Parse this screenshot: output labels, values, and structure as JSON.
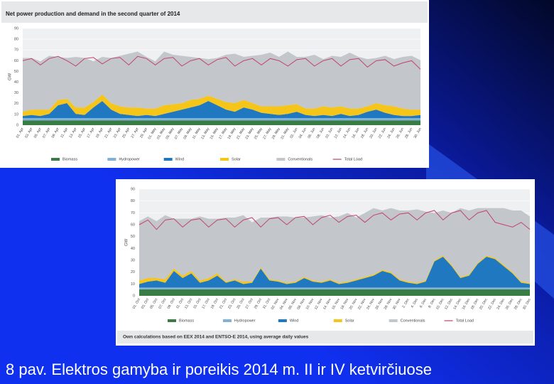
{
  "caption": "8 pav. Elektros gamyba ir poreikis 2014 m. II ir IV ketvirčiuose",
  "chart_data": [
    {
      "type": "area",
      "stacked": true,
      "title": "Net power production and demand in the second quarter of 2014",
      "ylabel": "GW",
      "ylim": [
        0,
        90
      ],
      "yticks": [
        0,
        10,
        20,
        30,
        40,
        50,
        60,
        70,
        80,
        90
      ],
      "grid": true,
      "categories": [
        "01. Apr",
        "03. Apr",
        "05. Apr",
        "07. Apr",
        "09. Apr",
        "11. Apr",
        "13. Apr",
        "15. Apr",
        "17. Apr",
        "19. Apr",
        "21. Apr",
        "23. Apr",
        "25. Apr",
        "27. Apr",
        "29. Apr",
        "01. May",
        "03. May",
        "05. May",
        "07. May",
        "09. May",
        "11. May",
        "13. May",
        "15. May",
        "17. May",
        "19. May",
        "21. May",
        "23. May",
        "25. May",
        "27. May",
        "29. May",
        "31. May",
        "02. Jun",
        "04. Jun",
        "06. Jun",
        "08. Jun",
        "10. Jun",
        "12. Jun",
        "14. Jun",
        "16. Jun",
        "18. Jun",
        "20. Jun",
        "22. Jun",
        "24. Jun",
        "26. Jun",
        "28. Jun",
        "30. Jun"
      ],
      "series": [
        {
          "name": "Biomass",
          "color": "#3a7d44",
          "values": [
            4.5,
            4.5,
            4.5,
            4.5,
            4.5,
            4.5,
            4.5,
            4.5,
            4.5,
            4.5,
            4.5,
            4.5,
            4.5,
            4.5,
            4.5,
            4.5,
            4.5,
            4.5,
            4.5,
            4.5,
            4.5,
            4.5,
            4.5,
            4.5,
            4.5,
            4.5,
            4.5,
            4.5,
            4.5,
            4.5,
            4.5,
            4.5,
            4.5,
            4.5,
            4.5,
            4.5,
            4.5,
            4.5,
            4.5,
            4.5,
            4.5,
            4.5,
            4.5,
            4.5,
            4.5,
            4.5
          ]
        },
        {
          "name": "Hydropower",
          "color": "#7fb2d8",
          "values": [
            2,
            2,
            2,
            2,
            2,
            2,
            2,
            2,
            2,
            2,
            2,
            2,
            2,
            2,
            2,
            2,
            2,
            2,
            2,
            2,
            2,
            2,
            2,
            2,
            2,
            2,
            2,
            2,
            2,
            2,
            2,
            2,
            2,
            2,
            2,
            2,
            2,
            2,
            2,
            2,
            2,
            2,
            2,
            2,
            2,
            2
          ]
        },
        {
          "name": "Wind",
          "color": "#1f78c0",
          "values": [
            2,
            3,
            2,
            4,
            12,
            14,
            4,
            3,
            10,
            16,
            8,
            4,
            3,
            2,
            3,
            2,
            4,
            6,
            8,
            10,
            12,
            16,
            12,
            8,
            6,
            10,
            8,
            5,
            4,
            3,
            4,
            6,
            3,
            2,
            3,
            2,
            4,
            2,
            3,
            6,
            8,
            5,
            3,
            2,
            2,
            3
          ]
        },
        {
          "name": "Solar",
          "color": "#f5c51a",
          "values": [
            4,
            5,
            6,
            4,
            5,
            4,
            6,
            7,
            5,
            6,
            6,
            7,
            7,
            8,
            6,
            7,
            8,
            7,
            6,
            7,
            6,
            5,
            6,
            7,
            8,
            7,
            6,
            6,
            7,
            8,
            8,
            7,
            6,
            7,
            8,
            8,
            7,
            7,
            6,
            5,
            6,
            7,
            8,
            7,
            6,
            5
          ]
        },
        {
          "name": "Conventionals",
          "color": "#c3c7cb",
          "values": [
            50,
            48,
            45,
            50,
            40,
            38,
            47,
            46,
            38,
            35,
            42,
            47,
            50,
            52,
            48,
            44,
            50,
            46,
            44,
            40,
            38,
            34,
            38,
            44,
            46,
            40,
            44,
            48,
            50,
            46,
            50,
            44,
            48,
            50,
            44,
            48,
            46,
            52,
            48,
            44,
            42,
            46,
            44,
            48,
            50,
            46
          ]
        },
        {
          "name": "Total Load",
          "color": "#c2436c",
          "type": "line",
          "values": [
            60,
            62,
            56,
            62,
            64,
            60,
            55,
            62,
            63,
            57,
            62,
            63,
            56,
            64,
            62,
            56,
            62,
            63,
            55,
            60,
            62,
            56,
            61,
            63,
            55,
            60,
            62,
            56,
            62,
            60,
            55,
            61,
            62,
            55,
            60,
            62,
            55,
            61,
            62,
            54,
            60,
            61,
            55,
            58,
            60,
            52
          ]
        }
      ]
    },
    {
      "type": "area",
      "stacked": true,
      "ylabel": "GW",
      "note": "Own calculations based on EEX 2014 and ENTSO-E 2014, using average daily values",
      "ylim": [
        0,
        90
      ],
      "yticks": [
        0,
        10,
        20,
        30,
        40,
        50,
        60,
        70,
        80,
        90
      ],
      "grid": true,
      "categories": [
        "01. Oct",
        "03. Oct",
        "05. Oct",
        "07. Oct",
        "09. Oct",
        "11. Oct",
        "13. Oct",
        "15. Oct",
        "17. Oct",
        "19. Oct",
        "21. Oct",
        "23. Oct",
        "25. Oct",
        "27. Oct",
        "29. Oct",
        "31. Oct",
        "02. Nov",
        "04. Nov",
        "06. Nov",
        "08. Nov",
        "10. Nov",
        "12. Nov",
        "14. Nov",
        "16. Nov",
        "18. Nov",
        "20. Nov",
        "22. Nov",
        "24. Nov",
        "26. Nov",
        "28. Nov",
        "30. Nov",
        "2. Dec",
        "4. Dec",
        "6. Dec",
        "8. Dec",
        "10. Dec",
        "12. Dec",
        "14. Dec",
        "16. Dec",
        "18. Dec",
        "20. Dec",
        "22. Dec",
        "24. Dec",
        "26. Dec",
        "28. Dec",
        "30. Dec"
      ],
      "series": [
        {
          "name": "Biomass",
          "color": "#3a7d44",
          "values": [
            5.5,
            5.5,
            5.5,
            5.5,
            5.5,
            5.5,
            5.5,
            5.5,
            5.5,
            5.5,
            5.5,
            5.5,
            5.5,
            5.5,
            5.5,
            5.5,
            5.5,
            5.5,
            5.5,
            5.5,
            5.5,
            5.5,
            5.5,
            5.5,
            5.5,
            5.5,
            5.5,
            5.5,
            5.5,
            5.5,
            5.5,
            5.5,
            5.5,
            5.5,
            5.5,
            5.5,
            5.5,
            5.5,
            5.5,
            5.5,
            5.5,
            5.5,
            5.5,
            5.5,
            5.5,
            5.5
          ]
        },
        {
          "name": "Hydropower",
          "color": "#7fb2d8",
          "values": [
            1.5,
            1.5,
            1.5,
            1.5,
            1.5,
            1.5,
            1.5,
            1.5,
            1.5,
            1.5,
            1.5,
            1.5,
            1.5,
            1.5,
            1.5,
            1.5,
            1.5,
            1.5,
            1.5,
            1.5,
            1.5,
            1.5,
            1.5,
            1.5,
            1.5,
            1.5,
            1.5,
            1.5,
            1.5,
            1.5,
            1.5,
            1.5,
            1.5,
            1.5,
            1.5,
            1.5,
            1.5,
            1.5,
            1.5,
            1.5,
            1.5,
            1.5,
            1.5,
            1.5,
            1.5,
            1.5
          ]
        },
        {
          "name": "Wind",
          "color": "#1f78c0",
          "values": [
            3,
            5,
            6,
            4,
            14,
            8,
            12,
            4,
            6,
            10,
            4,
            6,
            3,
            4,
            16,
            6,
            5,
            3,
            4,
            8,
            5,
            4,
            6,
            3,
            4,
            6,
            8,
            10,
            14,
            12,
            6,
            4,
            3,
            5,
            22,
            26,
            18,
            8,
            10,
            20,
            26,
            24,
            18,
            12,
            4,
            3
          ]
        },
        {
          "name": "Solar",
          "color": "#f5c51a",
          "values": [
            3,
            3,
            2,
            3,
            2,
            2,
            2,
            2,
            2,
            2,
            1,
            1,
            2,
            1,
            1,
            1,
            1,
            1,
            1,
            1,
            1,
            1,
            1,
            1,
            1,
            1,
            1,
            1,
            1,
            1,
            1,
            1,
            1,
            1,
            1,
            1,
            1,
            1,
            1,
            1,
            1,
            1,
            1,
            1,
            1,
            1
          ]
        },
        {
          "name": "Conventionals",
          "color": "#c3c7cb",
          "values": [
            50,
            52,
            48,
            54,
            42,
            48,
            44,
            54,
            50,
            46,
            54,
            52,
            56,
            50,
            42,
            52,
            54,
            56,
            54,
            50,
            54,
            56,
            52,
            56,
            58,
            52,
            54,
            56,
            50,
            54,
            58,
            60,
            62,
            58,
            40,
            38,
            44,
            58,
            54,
            46,
            40,
            42,
            48,
            52,
            60,
            56
          ]
        },
        {
          "name": "Total Load",
          "color": "#c2436c",
          "type": "line",
          "values": [
            60,
            64,
            56,
            64,
            65,
            58,
            64,
            65,
            58,
            64,
            65,
            58,
            64,
            66,
            58,
            65,
            66,
            60,
            66,
            67,
            60,
            66,
            68,
            62,
            67,
            68,
            62,
            68,
            70,
            64,
            69,
            70,
            64,
            70,
            72,
            64,
            70,
            72,
            64,
            70,
            72,
            62,
            60,
            58,
            62,
            56
          ]
        }
      ]
    }
  ]
}
